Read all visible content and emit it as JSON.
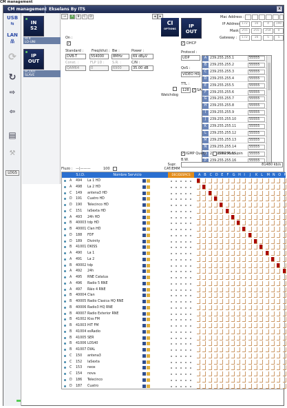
{
  "app_label": "CM management",
  "window_title_left": "CM management",
  "window_title_right": "Ekselans By ITS",
  "close_label": "x",
  "sidebar": {
    "usb": "USB",
    "lan": "LAN",
    "logs": "LOGS"
  },
  "modules": [
    {
      "line1": "IN",
      "line2": "S2",
      "label1": "RF4",
      "label2": "LO-UNI"
    },
    {
      "line1": "IP",
      "line2": "OUT",
      "label1": "IP_OUT",
      "label2": "SLAVE"
    }
  ],
  "tabs": [
    "A",
    "B",
    "C",
    "D"
  ],
  "input": {
    "on_label": "On :",
    "standard_label": "Standard :",
    "standard": "DVB-T",
    "freq_label": "Freq(khz) :",
    "freq": "554000",
    "bw_label": "Bw :",
    "bw": "8MHz",
    "power_label": "Power :",
    "power": "69 dBµV",
    "const_label": "Const. :",
    "const": "QAM64",
    "fec_label": "FLP 1D :",
    "fec": "0",
    "sr_label": "S.R. :",
    "sr": "6900",
    "cn_label": "C/N :",
    "cn": "35.00 dB",
    "watchdog_label": "Watchdog",
    "ci_label": "CI",
    "ci_sub": "OPTIONS"
  },
  "ipout": {
    "module_line1": "IP",
    "module_line2": "OUT",
    "mac_label": "Mac Address :",
    "mac": [
      "",
      "",
      "",
      "",
      "",
      ""
    ],
    "ip_label": "IP Address :",
    "ip": [
      "172",
      "16",
      "4",
      "190"
    ],
    "mask_label": "Mask :",
    "mask": [
      "255",
      "255",
      "254",
      "0"
    ],
    "gw_label": "Gateway :",
    "gw": [
      "172",
      "16",
      "5",
      "5"
    ],
    "dhcp_label": "DHCP",
    "protocol_label": "Protocol :",
    "protocol": "UDP",
    "qos_label": "QoS :",
    "qos": "VIDEO H0@",
    "ttl_label": "TTL :",
    "ttl": "128",
    "sap_label": "SAP",
    "igmp_query": "IGMP Query",
    "igmp_auto": "IGMP Auto-join",
    "bw_label": "B.W.",
    "bw_value": "81480 kb/s",
    "streams": [
      {
        "id": "A",
        "addr": "239.255.255.1",
        "port": "55555"
      },
      {
        "id": "B",
        "addr": "239.255.255.2",
        "port": "55555"
      },
      {
        "id": "C",
        "addr": "239.255.255.3",
        "port": "55555"
      },
      {
        "id": "D",
        "addr": "239.255.255.4",
        "port": "55555"
      },
      {
        "id": "E",
        "addr": "239.255.255.5",
        "port": "55555"
      },
      {
        "id": "F",
        "addr": "239.255.255.6",
        "port": "55555"
      },
      {
        "id": "G",
        "addr": "239.255.255.7",
        "port": "55555"
      },
      {
        "id": "H",
        "addr": "239.255.255.8",
        "port": "55555"
      },
      {
        "id": "I",
        "addr": "239.255.255.9",
        "port": "55555"
      },
      {
        "id": "J",
        "addr": "239.255.255.10",
        "port": "55555"
      },
      {
        "id": "K",
        "addr": "239.255.255.11",
        "port": "55555"
      },
      {
        "id": "L",
        "addr": "239.255.255.12",
        "port": "55555"
      },
      {
        "id": "M",
        "addr": "239.255.255.13",
        "port": "55555"
      },
      {
        "id": "N",
        "addr": "239.255.255.14",
        "port": "55555"
      },
      {
        "id": "O",
        "addr": "239.255.255.15",
        "port": "55555"
      },
      {
        "id": "P",
        "addr": "239.255.255.16",
        "port": "55555"
      }
    ]
  },
  "filter": {
    "fluzo_label": "Fluzo :",
    "fluzo_value": "100",
    "supr_label": "Supr. CAT/EMM"
  },
  "table": {
    "headers": {
      "sid": "S.I.D.",
      "name": "Nombre Servicio",
      "deps": "DEC/DESP/CS"
    },
    "matrix_letters": [
      "A",
      "B",
      "C",
      "D",
      "E",
      "F",
      "G",
      "H",
      "I",
      "J",
      "K",
      "L",
      "M",
      "N",
      "O",
      "P"
    ],
    "rows": [
      {
        "g": "A",
        "sid": "494",
        "name": "La 1 HD",
        "col": 0
      },
      {
        "g": "A",
        "sid": "498",
        "name": "La 2 HD",
        "col": 1
      },
      {
        "g": "C",
        "sid": "149",
        "name": "antena3 HD",
        "col": 2
      },
      {
        "g": "D",
        "sid": "191",
        "name": "Cuatro HD",
        "col": 3
      },
      {
        "g": "D",
        "sid": "190",
        "name": "Telecinco HD",
        "col": 4
      },
      {
        "g": "C",
        "sid": "151",
        "name": "laSexta HD",
        "col": 5
      },
      {
        "g": "A",
        "sid": "493",
        "name": "24h HD",
        "col": 6
      },
      {
        "g": "B",
        "sid": "40003",
        "name": "tdp HD",
        "col": 7
      },
      {
        "g": "B",
        "sid": "40001",
        "name": "Clan HD",
        "col": 8
      },
      {
        "g": "D",
        "sid": "188",
        "name": "FDF",
        "col": 9
      },
      {
        "g": "D",
        "sid": "189",
        "name": "Divinity",
        "col": 10
      },
      {
        "g": "B",
        "sid": "41001",
        "name": "DKISS",
        "col": 11
      },
      {
        "g": "A",
        "sid": "490",
        "name": "La 1",
        "col": 12
      },
      {
        "g": "A",
        "sid": "491",
        "name": "La 2",
        "col": 13
      },
      {
        "g": "B",
        "sid": "40002",
        "name": "tdp",
        "col": 14
      },
      {
        "g": "A",
        "sid": "492",
        "name": "24h",
        "col": 15
      },
      {
        "g": "A",
        "sid": "495",
        "name": "RNE Catalua",
        "col": -1
      },
      {
        "g": "A",
        "sid": "496",
        "name": "Radio 5 RNE",
        "col": -1
      },
      {
        "g": "A",
        "sid": "497",
        "name": "Ràio 4 RNE",
        "col": -1
      },
      {
        "g": "B",
        "sid": "40004",
        "name": "Clan",
        "col": -1
      },
      {
        "g": "B",
        "sid": "40005",
        "name": "Radio Clasica HQ RNE",
        "col": -1
      },
      {
        "g": "B",
        "sid": "40006",
        "name": "Radio3 HQ RNE",
        "col": -1
      },
      {
        "g": "B",
        "sid": "40007",
        "name": "Radio Exterior RNE",
        "col": -1
      },
      {
        "g": "B",
        "sid": "41002",
        "name": "Kiss FM",
        "col": -1
      },
      {
        "g": "B",
        "sid": "41003",
        "name": "HIT FM",
        "col": -1
      },
      {
        "g": "B",
        "sid": "41004",
        "name": "esRadio",
        "col": -1
      },
      {
        "g": "B",
        "sid": "41005",
        "name": "SER",
        "col": -1
      },
      {
        "g": "B",
        "sid": "41006",
        "name": "LOS40",
        "col": -1
      },
      {
        "g": "B",
        "sid": "41007",
        "name": "DIAL",
        "col": -1
      },
      {
        "g": "C",
        "sid": "150",
        "name": "antena3",
        "col": -1
      },
      {
        "g": "C",
        "sid": "152",
        "name": "laSexta",
        "col": -1
      },
      {
        "g": "C",
        "sid": "153",
        "name": "neox",
        "col": -1
      },
      {
        "g": "C",
        "sid": "154",
        "name": "nova",
        "col": -1
      },
      {
        "g": "D",
        "sid": "186",
        "name": "Telecinco",
        "col": -1
      },
      {
        "g": "D",
        "sid": "187",
        "name": "Cuatro",
        "col": -1
      }
    ]
  },
  "colors": {
    "matrix_on": "#aa0000",
    "header_blue": "#2a6fd0",
    "header_green": "#3aa04a",
    "header_orange": "#e38c1a"
  }
}
